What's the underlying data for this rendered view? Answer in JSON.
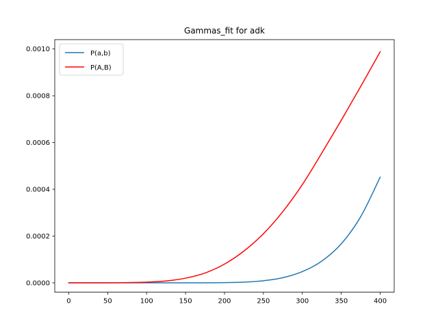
{
  "chart_data": {
    "type": "line",
    "title": "Gammas_fit for adk",
    "xlabel": "",
    "ylabel": "",
    "xlim": [
      -18,
      418
    ],
    "ylim": [
      -4e-05,
      0.00104
    ],
    "x_ticks": [
      0,
      50,
      100,
      150,
      200,
      250,
      300,
      350,
      400
    ],
    "x_tick_labels": [
      "0",
      "50",
      "100",
      "150",
      "200",
      "250",
      "300",
      "350",
      "400"
    ],
    "y_ticks": [
      0,
      0.0002,
      0.0004,
      0.0006,
      0.0008,
      0.001
    ],
    "y_tick_labels": [
      "0.0000",
      "0.0002",
      "0.0004",
      "0.0006",
      "0.0008",
      "0.0010"
    ],
    "grid": false,
    "legend_position": "top-left",
    "x": [
      0,
      25,
      50,
      75,
      100,
      125,
      150,
      175,
      200,
      225,
      250,
      275,
      300,
      325,
      350,
      375,
      400
    ],
    "series": [
      {
        "name": "P(a,b)",
        "color": "#1f77b4",
        "values": [
          0,
          0,
          0,
          0,
          0,
          0,
          0,
          0,
          1e-06,
          3e-06,
          9e-06,
          2.2e-05,
          4.8e-05,
          9.3e-05,
          0.000167,
          0.000283,
          0.000452
        ]
      },
      {
        "name": "P(A,B)",
        "color": "#ff0000",
        "values": [
          0,
          0,
          0,
          1e-06,
          3e-06,
          8e-06,
          2e-05,
          4.2e-05,
          8e-05,
          0.000136,
          0.00021,
          0.000305,
          0.00042,
          0.000555,
          0.000695,
          0.00084,
          0.000988
        ]
      }
    ]
  }
}
